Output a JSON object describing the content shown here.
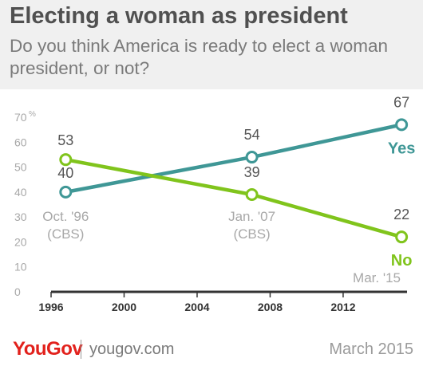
{
  "header": {
    "title": "Electing a woman as president",
    "subtitle": "Do you think America is ready to elect a woman president, or not?"
  },
  "chart_data": {
    "type": "line",
    "title": "Electing a woman as president",
    "subtitle": "Do you think America is ready to elect a woman president, or not?",
    "xlabel": "",
    "ylabel": "",
    "y_unit": "%",
    "xlim": [
      1996,
      2015.5
    ],
    "ylim": [
      0,
      70
    ],
    "x_ticks": [
      1996,
      2000,
      2004,
      2008,
      2012
    ],
    "y_ticks": [
      0,
      10,
      20,
      30,
      40,
      50,
      60,
      70
    ],
    "grid": false,
    "legend": "inline labels at line ends",
    "x": [
      1996.8,
      2007.0,
      2015.2
    ],
    "point_labels": [
      {
        "text": [
          "Oct. '96",
          "(CBS)"
        ],
        "x": 1996.8
      },
      {
        "text": [
          "Jan. '07",
          "(CBS)"
        ],
        "x": 2007.0
      },
      {
        "text": [
          "Mar. '15"
        ],
        "x": 2015.2
      }
    ],
    "series": [
      {
        "name": "Yes",
        "values": [
          40,
          54,
          67
        ],
        "color": "#3f9796"
      },
      {
        "name": "No",
        "values": [
          53,
          39,
          22
        ],
        "color": "#80c41c"
      }
    ]
  },
  "footer": {
    "logo": "YouGov",
    "url": "yougov.com",
    "date": "March 2015"
  },
  "colors": {
    "header_bg": "#f0f0f0",
    "title": "#505050",
    "subtitle": "#7a7a7a",
    "axis": "#333333",
    "tick_label": "#a8a8a8",
    "brand": "#e2211c"
  }
}
